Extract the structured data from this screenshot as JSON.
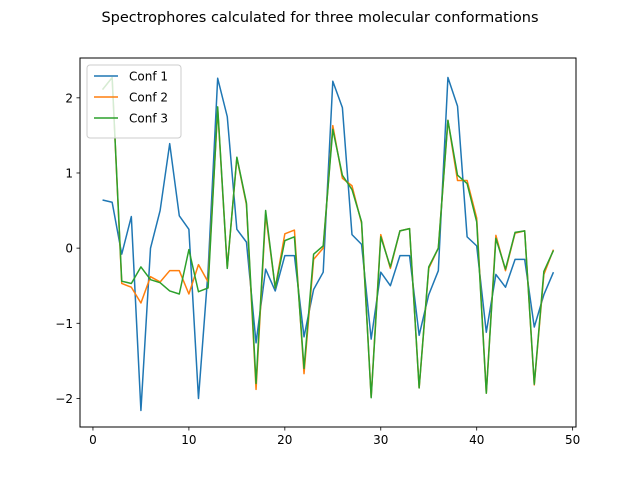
{
  "chart_data": {
    "type": "line",
    "title": "Spectrophores calculated for three molecular conformations",
    "xlabel": "",
    "ylabel": "",
    "xlim": [
      -1.35,
      50.35
    ],
    "ylim": [
      -2.38,
      2.53
    ],
    "xticks": [
      0,
      10,
      20,
      30,
      40,
      50
    ],
    "yticks": [
      -2,
      -1,
      0,
      1,
      2
    ],
    "grid": false,
    "legend_position": "top-left",
    "x": [
      1,
      2,
      3,
      4,
      5,
      6,
      7,
      8,
      9,
      10,
      11,
      12,
      13,
      14,
      15,
      16,
      17,
      18,
      19,
      20,
      21,
      22,
      23,
      24,
      25,
      26,
      27,
      28,
      29,
      30,
      31,
      32,
      33,
      34,
      35,
      36,
      37,
      38,
      39,
      40,
      41,
      42,
      43,
      44,
      45,
      46,
      47,
      48
    ],
    "series": [
      {
        "name": "Conf 1",
        "color": "#1f77b4",
        "values": [
          0.64,
          0.61,
          -0.08,
          0.42,
          -2.16,
          0.0,
          0.5,
          1.39,
          0.43,
          0.25,
          -2.0,
          -0.3,
          2.26,
          1.75,
          0.25,
          0.08,
          -1.26,
          -0.28,
          -0.57,
          -0.1,
          -0.1,
          -1.18,
          -0.55,
          -0.32,
          2.22,
          1.87,
          0.18,
          0.05,
          -1.21,
          -0.32,
          -0.5,
          -0.1,
          -0.1,
          -1.16,
          -0.62,
          -0.3,
          2.27,
          1.89,
          0.15,
          0.03,
          -1.12,
          -0.35,
          -0.52,
          -0.15,
          -0.15,
          -1.05,
          -0.62,
          -0.32
        ]
      },
      {
        "name": "Conf 2",
        "color": "#ff7f0e",
        "values": [
          2.11,
          2.27,
          -0.47,
          -0.52,
          -0.73,
          -0.38,
          -0.45,
          -0.3,
          -0.3,
          -0.61,
          -0.22,
          -0.45,
          1.85,
          -0.26,
          1.2,
          0.58,
          -1.88,
          0.45,
          -0.53,
          0.19,
          0.24,
          -1.67,
          -0.15,
          0.0,
          1.63,
          0.93,
          0.83,
          0.33,
          -1.98,
          0.18,
          -0.27,
          0.23,
          0.26,
          -1.86,
          -0.27,
          0.0,
          1.7,
          0.9,
          0.9,
          0.4,
          -1.93,
          0.17,
          -0.3,
          0.2,
          0.23,
          -1.82,
          -0.35,
          -0.02
        ]
      },
      {
        "name": "Conf 3",
        "color": "#2ca02c",
        "values": [
          2.11,
          2.27,
          -0.44,
          -0.47,
          -0.25,
          -0.42,
          -0.46,
          -0.57,
          -0.61,
          -0.02,
          -0.58,
          -0.53,
          1.88,
          -0.27,
          1.21,
          0.6,
          -1.8,
          0.5,
          -0.53,
          0.1,
          0.15,
          -1.6,
          -0.08,
          0.03,
          1.58,
          0.97,
          0.78,
          0.35,
          -1.99,
          0.15,
          -0.25,
          0.23,
          0.26,
          -1.86,
          -0.25,
          0.0,
          1.7,
          0.97,
          0.86,
          0.35,
          -1.93,
          0.13,
          -0.28,
          0.21,
          0.23,
          -1.81,
          -0.31,
          -0.03
        ]
      }
    ]
  }
}
